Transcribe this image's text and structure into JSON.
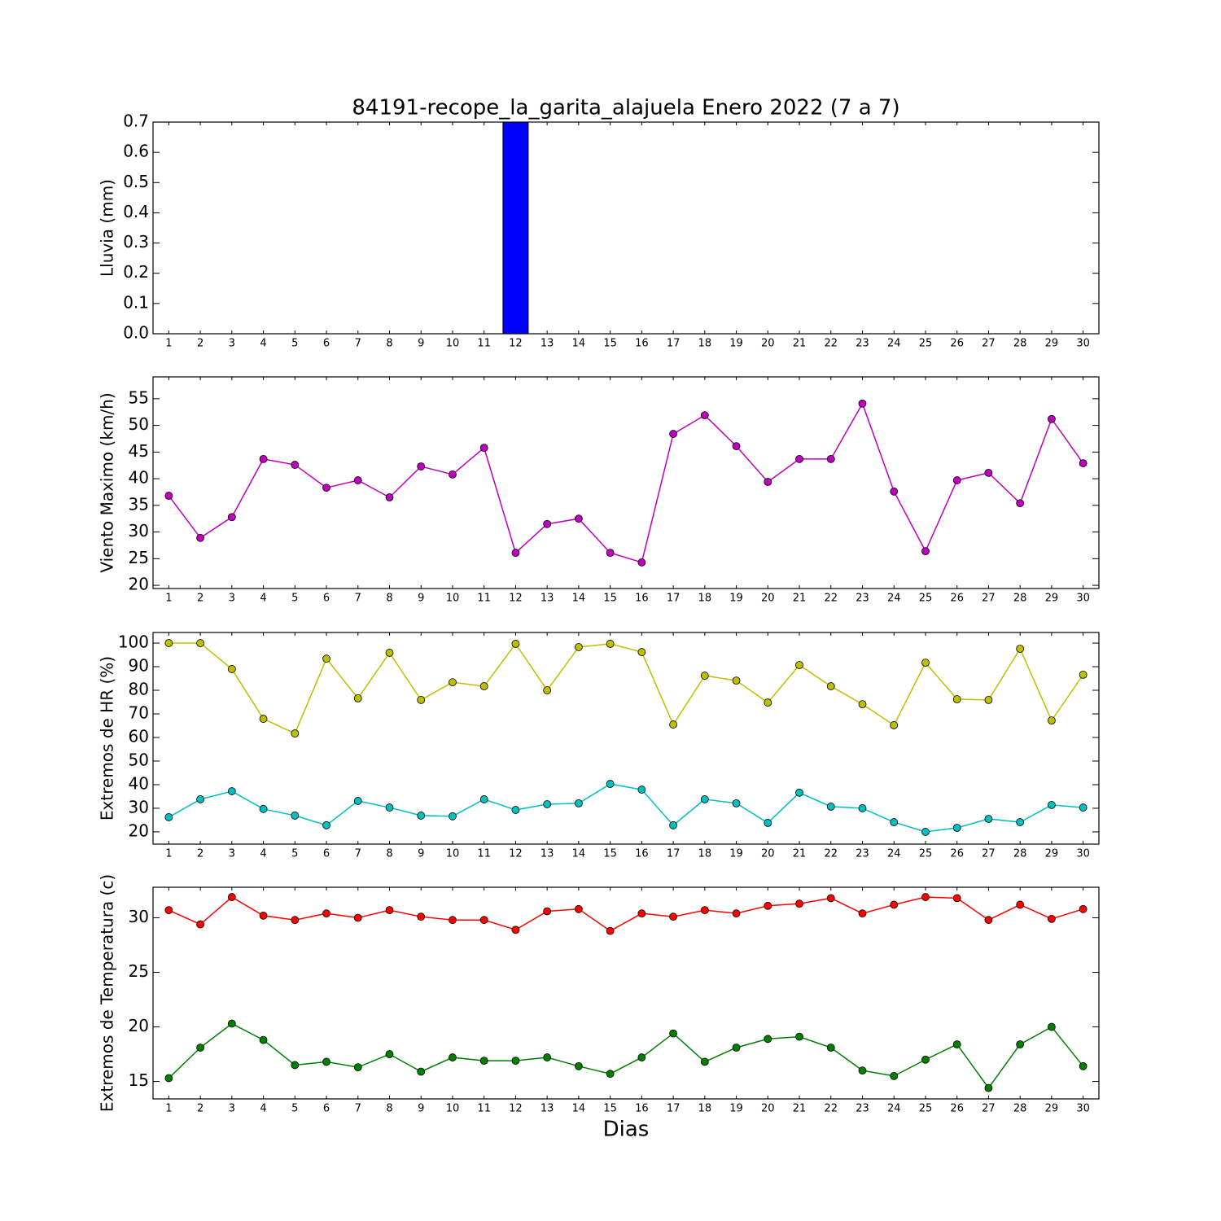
{
  "chart_data": [
    {
      "type": "bar",
      "title": "84191-recope_la_garita_alajuela Enero 2022  (7 a 7)",
      "ylabel": "Lluvia (mm)",
      "x": [
        1,
        2,
        3,
        4,
        5,
        6,
        7,
        8,
        9,
        10,
        11,
        12,
        13,
        14,
        15,
        16,
        17,
        18,
        19,
        20,
        21,
        22,
        23,
        24,
        25,
        26,
        27,
        28,
        29,
        30
      ],
      "values": [
        0,
        0,
        0,
        0,
        0,
        0,
        0,
        0,
        0,
        0,
        0,
        0.7,
        0,
        0,
        0,
        0,
        0,
        0,
        0,
        0,
        0,
        0,
        0,
        0,
        0,
        0,
        0,
        0,
        0,
        0
      ],
      "color": "#0000ff",
      "xlim": [
        0.5,
        30.5
      ],
      "xticks": [
        1,
        2,
        3,
        4,
        5,
        6,
        7,
        8,
        9,
        10,
        11,
        12,
        13,
        14,
        15,
        16,
        17,
        18,
        19,
        20,
        21,
        22,
        23,
        24,
        25,
        26,
        27,
        28,
        29,
        30
      ],
      "ylim": [
        0,
        0.7
      ],
      "yticks": [
        {
          "value": 0,
          "label": "0.0"
        },
        0.1,
        0.2,
        0.3,
        0.4,
        0.5,
        0.6,
        0.7
      ]
    },
    {
      "type": "line",
      "ylabel": "Viento Maximo (km/h)",
      "x": [
        1,
        2,
        3,
        4,
        5,
        6,
        7,
        8,
        9,
        10,
        11,
        12,
        13,
        14,
        15,
        16,
        17,
        18,
        19,
        20,
        21,
        22,
        23,
        24,
        25,
        26,
        27,
        28,
        29,
        30
      ],
      "series": [
        {
          "color": "#bf00bf",
          "values": [
            36.8,
            28.9,
            32.8,
            43.7,
            42.6,
            38.3,
            39.7,
            36.5,
            42.3,
            40.8,
            45.8,
            26.1,
            31.5,
            32.5,
            26.1,
            24.3,
            48.4,
            51.9,
            46.1,
            39.4,
            43.7,
            43.7,
            54.1,
            37.6,
            26.4,
            39.7,
            41.1,
            35.4,
            51.2,
            42.9
          ]
        }
      ],
      "xlim": [
        0.5,
        30.5
      ],
      "xticks": [
        1,
        2,
        3,
        4,
        5,
        6,
        7,
        8,
        9,
        10,
        11,
        12,
        13,
        14,
        15,
        16,
        17,
        18,
        19,
        20,
        21,
        22,
        23,
        24,
        25,
        26,
        27,
        28,
        29,
        30
      ],
      "ylim": [
        19.4,
        59.1
      ],
      "yticks": [
        20,
        25,
        30,
        35,
        40,
        45,
        50,
        55
      ]
    },
    {
      "type": "line",
      "ylabel": "Extremos de HR (%)",
      "x": [
        1,
        2,
        3,
        4,
        5,
        6,
        7,
        8,
        9,
        10,
        11,
        12,
        13,
        14,
        15,
        16,
        17,
        18,
        19,
        20,
        21,
        22,
        23,
        24,
        25,
        26,
        27,
        28,
        29,
        30
      ],
      "series": [
        {
          "color": "#bfbf00",
          "values": [
            100,
            100,
            89,
            67.9,
            61.7,
            93.4,
            76.6,
            95.9,
            75.9,
            83.4,
            81.7,
            99.7,
            80,
            98.3,
            99.7,
            96.2,
            65.5,
            86.2,
            84.1,
            74.8,
            90.7,
            81.7,
            74.1,
            65.2,
            91.7,
            76.2,
            75.9,
            97.6,
            67.2,
            86.6
          ]
        },
        {
          "color": "#00bfbf",
          "values": [
            26.2,
            33.8,
            37.2,
            29.7,
            26.9,
            22.8,
            33.1,
            30.3,
            26.9,
            26.6,
            33.8,
            29.3,
            31.7,
            32.1,
            40.3,
            37.9,
            22.8,
            33.8,
            32.1,
            23.8,
            36.6,
            30.7,
            30,
            24.1,
            20,
            21.7,
            25.5,
            24.1,
            31.4,
            30.3
          ]
        }
      ],
      "xlim": [
        0.5,
        30.5
      ],
      "xticks": [
        1,
        2,
        3,
        4,
        5,
        6,
        7,
        8,
        9,
        10,
        11,
        12,
        13,
        14,
        15,
        16,
        17,
        18,
        19,
        20,
        21,
        22,
        23,
        24,
        25,
        26,
        27,
        28,
        29,
        30
      ],
      "ylim": [
        14.8,
        104.5
      ],
      "yticks": [
        20,
        30,
        40,
        50,
        60,
        70,
        80,
        90,
        100
      ]
    },
    {
      "type": "line",
      "ylabel": "Extremos de Temperatura (c)",
      "xlabel": "Dias",
      "x": [
        1,
        2,
        3,
        4,
        5,
        6,
        7,
        8,
        9,
        10,
        11,
        12,
        13,
        14,
        15,
        16,
        17,
        18,
        19,
        20,
        21,
        22,
        23,
        24,
        25,
        26,
        27,
        28,
        29,
        30
      ],
      "series": [
        {
          "color": "#ff0000",
          "values": [
            30.7,
            29.4,
            31.9,
            30.2,
            29.8,
            30.4,
            30,
            30.7,
            30.1,
            29.8,
            29.8,
            28.9,
            30.6,
            30.8,
            28.8,
            30.4,
            30.1,
            30.7,
            30.4,
            31.1,
            31.3,
            31.8,
            30.4,
            31.2,
            31.9,
            31.8,
            29.8,
            31.2,
            29.9,
            30.8
          ]
        },
        {
          "color": "#008000",
          "values": [
            15.3,
            18.1,
            20.3,
            18.8,
            16.5,
            16.8,
            16.3,
            17.5,
            15.9,
            17.2,
            16.9,
            16.9,
            17.2,
            16.4,
            15.7,
            17.2,
            19.4,
            16.8,
            18.1,
            18.9,
            19.1,
            18.1,
            16,
            15.5,
            17,
            18.4,
            14.4,
            18.4,
            20,
            16.4
          ]
        }
      ],
      "xlim": [
        0.5,
        30.5
      ],
      "xticks": [
        1,
        2,
        3,
        4,
        5,
        6,
        7,
        8,
        9,
        10,
        11,
        12,
        13,
        14,
        15,
        16,
        17,
        18,
        19,
        20,
        21,
        22,
        23,
        24,
        25,
        26,
        27,
        28,
        29,
        30
      ],
      "ylim": [
        13.4,
        32.8
      ],
      "yticks": [
        15,
        20,
        25,
        30
      ]
    }
  ]
}
